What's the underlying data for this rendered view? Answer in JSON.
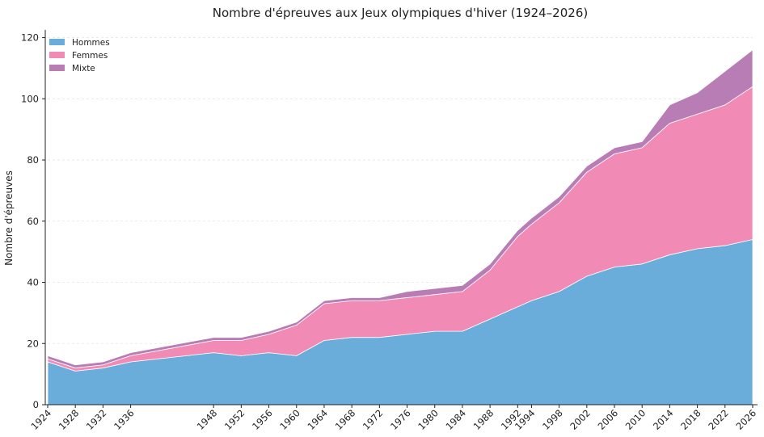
{
  "chart_data": {
    "type": "area",
    "stacked": true,
    "title": "Nombre d'épreuves aux Jeux olympiques d'hiver (1924–2026)",
    "xlabel": "",
    "ylabel": "Nombre d'épreuves",
    "ylim": [
      0,
      122
    ],
    "yticks": [
      0,
      20,
      40,
      60,
      80,
      100,
      120
    ],
    "grid": "horizontal dashed",
    "legend_position": "top-left",
    "x": [
      1924,
      1928,
      1932,
      1936,
      1948,
      1952,
      1956,
      1960,
      1964,
      1968,
      1972,
      1976,
      1980,
      1984,
      1988,
      1992,
      1994,
      1998,
      2002,
      2006,
      2010,
      2014,
      2018,
      2022,
      2026
    ],
    "series": [
      {
        "name": "Hommes",
        "color": "#6aaddb",
        "values": [
          14,
          11,
          12,
          14,
          17,
          16,
          17,
          16,
          21,
          22,
          22,
          23,
          24,
          24,
          28,
          32,
          34,
          37,
          42,
          45,
          46,
          49,
          51,
          52,
          54
        ]
      },
      {
        "name": "Femmes",
        "color": "#f28ab6",
        "values": [
          1,
          1,
          1,
          2,
          4,
          5,
          6,
          10,
          12,
          12,
          12,
          12,
          12,
          13,
          16,
          23,
          25,
          29,
          34,
          37,
          38,
          43,
          44,
          46,
          50
        ]
      },
      {
        "name": "Mixte",
        "color": "#b97db5",
        "values": [
          1,
          1,
          1,
          1,
          1,
          1,
          1,
          1,
          1,
          1,
          1,
          2,
          2,
          2,
          2,
          2,
          2,
          2,
          2,
          2,
          2,
          6,
          7,
          11,
          12
        ]
      }
    ]
  }
}
